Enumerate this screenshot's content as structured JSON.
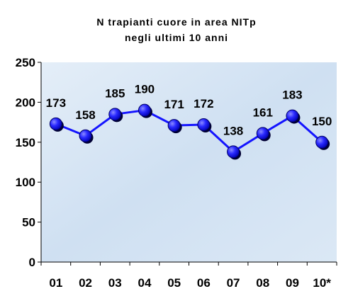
{
  "chart_data": {
    "type": "line",
    "title_lines": [
      "N trapianti cuore in area NITp",
      "negli ultimi 10 anni"
    ],
    "categories": [
      "01",
      "02",
      "03",
      "04",
      "05",
      "06",
      "07",
      "08",
      "09",
      "10*"
    ],
    "series": [
      {
        "values": [
          173,
          158,
          185,
          190,
          171,
          172,
          138,
          161,
          183,
          150
        ]
      }
    ],
    "ylim": [
      0,
      250
    ],
    "yticks": [
      "0",
      "50",
      "100",
      "150",
      "200",
      "250"
    ],
    "xlabel": "",
    "ylabel": "",
    "grid": false,
    "data_labels": true,
    "line_color": "#1414ff",
    "marker_color": "#2a2aff",
    "marker_shadow_color": "#000033",
    "plot_background": "#d6e6f6"
  }
}
